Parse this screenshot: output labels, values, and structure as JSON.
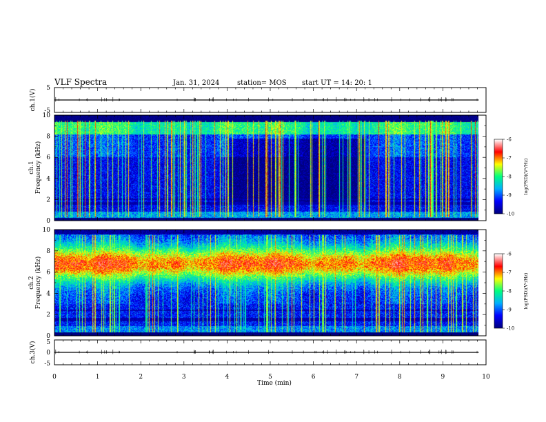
{
  "header": {
    "title": "VLF Spectra",
    "date": "Jan. 31, 2024",
    "station": "station= MOS",
    "start": "start UT =  14: 20: 1"
  },
  "colors": {
    "colormap": [
      "#000080",
      "#0000ff",
      "#00b0ff",
      "#00ff80",
      "#ffff00",
      "#ff0000",
      "#ffffff"
    ],
    "background": "#ffffff",
    "axis": "#000000"
  },
  "chart_data": [
    {
      "id": "ch1-waveform",
      "type": "line",
      "ylabel": "ch.1(V)",
      "ylim": [
        -5,
        5
      ],
      "yticks": [
        "5",
        "-5"
      ],
      "xlim": [
        0,
        10
      ],
      "series": [
        {
          "x": [
            0,
            9.83
          ],
          "y": [
            0,
            0
          ]
        }
      ]
    },
    {
      "id": "ch1-spectrogram",
      "type": "heatmap",
      "ylabel_line1": "ch.1",
      "ylabel_line2": "Frequency (kHz)",
      "ylim": [
        0,
        10
      ],
      "yticks": [
        "0",
        "2",
        "4",
        "6",
        "8",
        "10"
      ],
      "xlim": [
        0,
        10
      ],
      "data_end_min": 9.83,
      "colorbar": {
        "label": "log(PSD)(V²/Hz)",
        "range": [
          -10,
          -6
        ],
        "ticks": [
          "-6",
          "-7",
          "-8",
          "-9",
          "-10"
        ]
      },
      "features": {
        "noise_floor_log_psd": -9.4,
        "band_khz": [
          8.2,
          9.4
        ],
        "band_log_psd": -8.1,
        "low_band_khz": [
          0.2,
          0.8
        ],
        "dark_region_min": [
          4.0,
          7.2
        ],
        "sferic_lines": true
      }
    },
    {
      "id": "ch2-spectrogram",
      "type": "heatmap",
      "ylabel_line1": "ch.2",
      "ylabel_line2": "Frequency (kHz)",
      "ylim": [
        0,
        10
      ],
      "yticks": [
        "0",
        "2",
        "4",
        "6",
        "8",
        "10"
      ],
      "xlim": [
        0,
        10
      ],
      "data_end_min": 9.83,
      "colorbar": {
        "label": "log(PSD)(V²/Hz)",
        "range": [
          -10,
          -6
        ],
        "ticks": [
          "-6",
          "-7",
          "-8",
          "-9",
          "-10"
        ]
      },
      "features": {
        "peak_khz": 6.8,
        "peak_log_psd": -6.9,
        "band_khz": [
          4.0,
          9.2
        ],
        "noise_floor_log_psd": -9.2,
        "sferic_lines": true
      }
    },
    {
      "id": "ch3-waveform",
      "type": "line",
      "ylabel": "ch.3(V)",
      "ylim": [
        -5,
        5
      ],
      "yticks": [
        "5",
        "0",
        "-5"
      ],
      "xlim": [
        0,
        10
      ],
      "series": [
        {
          "x": [
            0,
            9.83
          ],
          "y": [
            0,
            0
          ]
        }
      ]
    }
  ],
  "xaxis": {
    "label": "Time (min)",
    "ticks": [
      "0",
      "1",
      "2",
      "3",
      "4",
      "5",
      "6",
      "7",
      "8",
      "9",
      "10"
    ]
  }
}
